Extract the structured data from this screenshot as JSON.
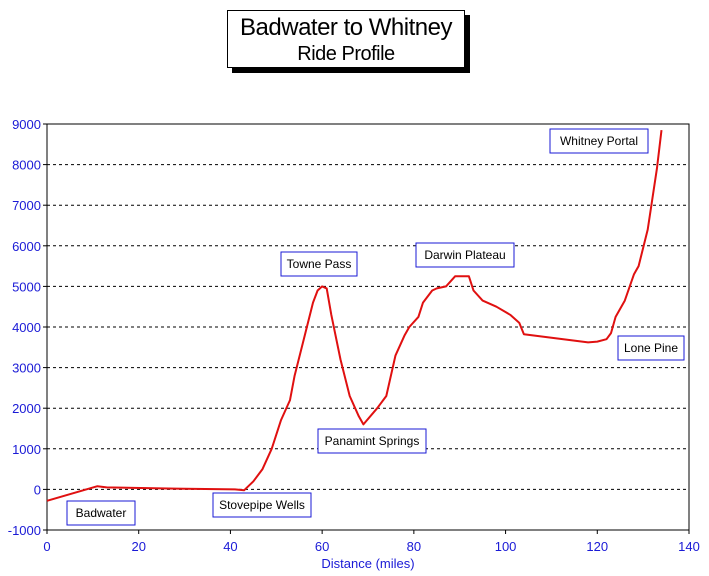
{
  "chart_data": {
    "type": "line",
    "title": "Badwater to Whitney",
    "subtitle": "Ride Profile",
    "xlabel": "Distance (miles)",
    "ylabel": "",
    "xlim": [
      0,
      140
    ],
    "ylim": [
      -1000,
      9000
    ],
    "x_ticks": [
      0,
      20,
      40,
      60,
      80,
      100,
      120,
      140
    ],
    "y_ticks": [
      -1000,
      0,
      1000,
      2000,
      3000,
      4000,
      5000,
      6000,
      7000,
      8000,
      9000
    ],
    "grid": "horizontal dashed",
    "line_color": "#e01010",
    "axis_text_color": "#1a1ad6",
    "series": [
      {
        "x": [
          0,
          11,
          13,
          28,
          41,
          43,
          45,
          47,
          49,
          51,
          53,
          54,
          56,
          58,
          59,
          60,
          61,
          62,
          64,
          66,
          68,
          69,
          72,
          74,
          76,
          78,
          79,
          81,
          82,
          84,
          85,
          87,
          89,
          90,
          92,
          93,
          95,
          98,
          101,
          103,
          104,
          118,
          120,
          122,
          123,
          124,
          126,
          128,
          129,
          131,
          133,
          134
        ],
        "y": [
          -280,
          80,
          50,
          20,
          0,
          -20,
          200,
          500,
          1000,
          1700,
          2200,
          2800,
          3700,
          4600,
          4900,
          5000,
          4950,
          4300,
          3200,
          2300,
          1800,
          1600,
          2000,
          2300,
          3300,
          3800,
          4000,
          4250,
          4600,
          4900,
          4950,
          5000,
          5250,
          5250,
          5250,
          4900,
          4650,
          4500,
          4300,
          4100,
          3820,
          3620,
          3640,
          3700,
          3850,
          4250,
          4650,
          5300,
          5500,
          6400,
          7900,
          8850
        ]
      }
    ],
    "annotations": [
      {
        "label": "Whitney Portal"
      },
      {
        "label": "Towne Pass"
      },
      {
        "label": "Darwin Plateau"
      },
      {
        "label": "Lone Pine"
      },
      {
        "label": "Panamint Springs"
      },
      {
        "label": "Badwater"
      },
      {
        "label": "Stovepipe Wells"
      }
    ]
  }
}
